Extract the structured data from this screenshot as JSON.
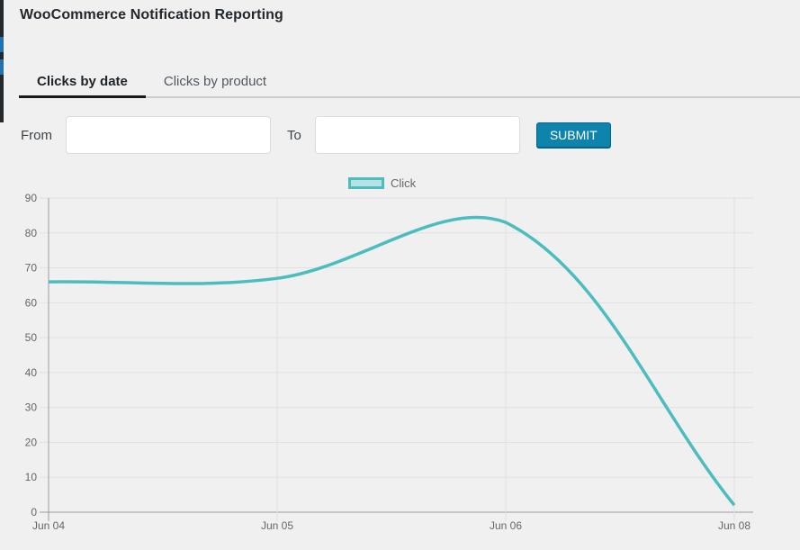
{
  "page": {
    "title": "WooCommerce Notification Reporting"
  },
  "tabs": [
    {
      "label": "Clicks by date",
      "active": true
    },
    {
      "label": "Clicks by product",
      "active": false
    }
  ],
  "filter": {
    "from_label": "From",
    "from_value": "",
    "to_label": "To",
    "to_value": "",
    "submit_label": "SUBMIT"
  },
  "chart_data": {
    "type": "line",
    "title": "",
    "categories": [
      "Jun 04",
      "Jun 05",
      "Jun 06",
      "Jun 08"
    ],
    "series": [
      {
        "name": "Click",
        "values": [
          66,
          67,
          83,
          2
        ]
      }
    ],
    "ylim": [
      0,
      90
    ],
    "yticks": [
      0,
      10,
      20,
      30,
      40,
      50,
      60,
      70,
      80,
      90
    ],
    "grid": true,
    "legend_position": "top",
    "colors": {
      "line": "#4bbdbf",
      "legend_fill": "#b7e1e2",
      "grid": "#e1e1e2",
      "axis": "#9d9da1",
      "tick_text": "#666666"
    }
  },
  "theme": {
    "page_bg": "#f0f0f1",
    "admin_strip_dark": "#23282d",
    "admin_strip_accent": "#2271b1",
    "primary_button_bg": "#0e83ac",
    "primary_button_border": "#00658c",
    "tab_active_underline": "#17191d"
  }
}
